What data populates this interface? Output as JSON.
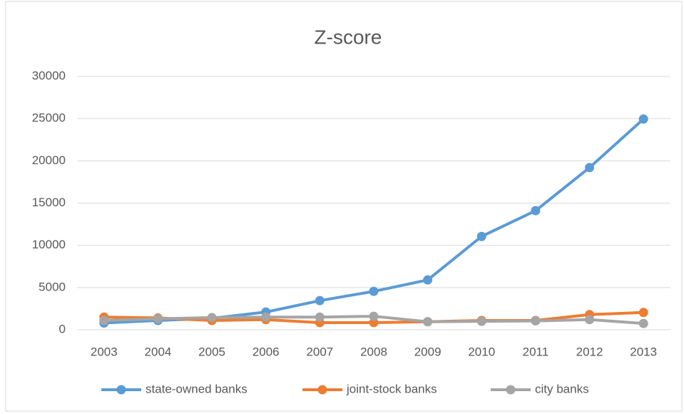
{
  "chart_data": {
    "type": "line",
    "title": "Z-score",
    "categories": [
      "2003",
      "2004",
      "2005",
      "2006",
      "2007",
      "2008",
      "2009",
      "2010",
      "2011",
      "2012",
      "2013"
    ],
    "series": [
      {
        "name": "state-owned banks",
        "color": "#5b9bd5",
        "values": [
          800,
          1100,
          1350,
          2100,
          3450,
          4550,
          5900,
          11050,
          14100,
          19200,
          24950
        ]
      },
      {
        "name": "joint-stock banks",
        "color": "#ed7d31",
        "values": [
          1500,
          1400,
          1100,
          1200,
          850,
          850,
          950,
          1100,
          1100,
          1800,
          2050
        ]
      },
      {
        "name": "city banks",
        "color": "#a5a5a5",
        "values": [
          1100,
          1300,
          1450,
          1500,
          1500,
          1600,
          950,
          1000,
          1050,
          1200,
          750
        ]
      }
    ],
    "ylim": [
      0,
      30000
    ],
    "yticks": [
      0,
      5000,
      10000,
      15000,
      20000,
      25000,
      30000
    ],
    "grid": true,
    "legend": "bottom"
  }
}
